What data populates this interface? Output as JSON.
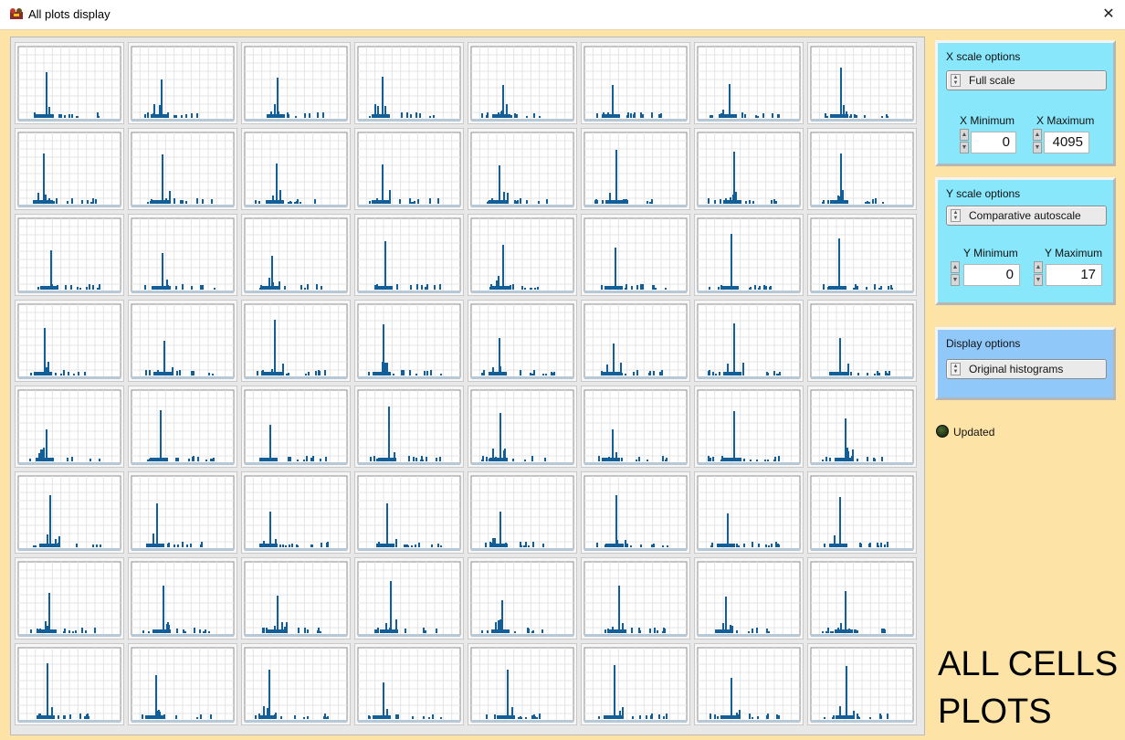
{
  "window": {
    "title": "All plots display",
    "close_label": "✕"
  },
  "grid": {
    "rows": 8,
    "cols": 8,
    "line_color": "#115e99",
    "cell_background": "#f6f6f6"
  },
  "x_scale": {
    "label": "X scale options",
    "mode": "Full scale",
    "min_label": "X Minimum",
    "min_value": "0",
    "max_label": "X Maximum",
    "max_value": "4095"
  },
  "y_scale": {
    "label": "Y scale options",
    "mode": "Comparative autoscale",
    "min_label": "Y Minimum",
    "min_value": "0",
    "max_label": "Y Maximum",
    "max_value": "17"
  },
  "display": {
    "label": "Display options",
    "mode": "Original histograms"
  },
  "status": {
    "led_label": "Updated"
  },
  "caption": {
    "line1": "ALL CELLS",
    "line2": "PLOTS"
  },
  "colors": {
    "background": "#fde4a6",
    "panel_cyan": "#88e7fb",
    "panel_blue": "#8fc8f9",
    "plot_line": "#115e99"
  }
}
